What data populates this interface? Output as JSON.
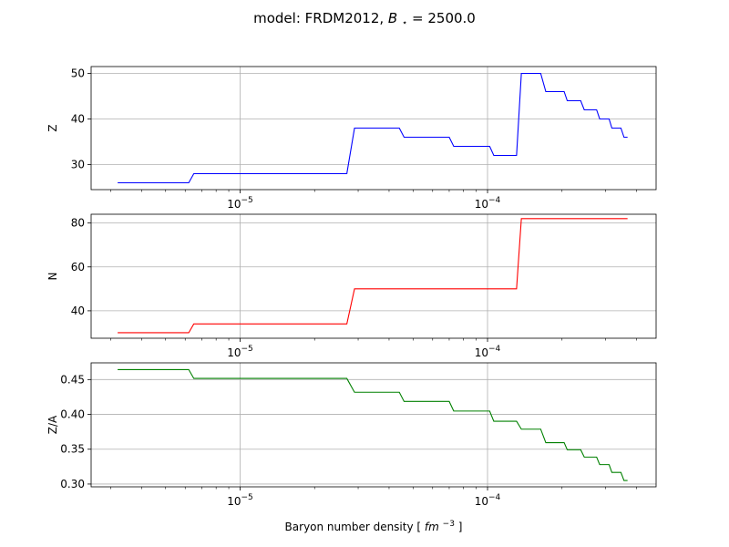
{
  "figure": {
    "title_prefix": "model: FRDM2012, ",
    "title_math_B": "B",
    "title_math_star": "⋆",
    "title_value": " = 2500.0"
  },
  "x_axis": {
    "label_prefix": "Baryon number density [",
    "label_unit_base": "fm",
    "label_unit_exp": "−3",
    "label_suffix": "]",
    "scale": "log",
    "xlim": [
      2.5e-06,
      0.00048
    ],
    "major_ticks": [
      {
        "value": 1e-05,
        "base": "10",
        "exp": "−5"
      },
      {
        "value": 0.0001,
        "base": "10",
        "exp": "−4"
      }
    ]
  },
  "colors": {
    "Z": "#0000ff",
    "N": "#ff0000",
    "ZA": "#008000",
    "grid": "#b0b0b0"
  },
  "chart_data": [
    {
      "type": "line",
      "ylabel": "Z",
      "xscale": "log",
      "ylim": [
        24.5,
        51.5
      ],
      "yticks": [
        30,
        40,
        50
      ],
      "grid": true,
      "x": [
        3.2e-06,
        6.2e-06,
        6.5e-06,
        2.7e-05,
        2.9e-05,
        4.4e-05,
        4.6e-05,
        7e-05,
        7.3e-05,
        0.000102,
        0.000106,
        0.000131,
        0.000137,
        0.000164,
        0.000172,
        0.000204,
        0.00021,
        0.000238,
        0.000246,
        0.000276,
        0.000284,
        0.00031,
        0.000318,
        0.000346,
        0.000356,
        0.000368
      ],
      "y": [
        26,
        26,
        28,
        28,
        38,
        38,
        36,
        36,
        34,
        34,
        32,
        32,
        50,
        50,
        46,
        46,
        44,
        44,
        42,
        42,
        40,
        40,
        38,
        38,
        36,
        36
      ]
    },
    {
      "type": "line",
      "ylabel": "N",
      "xscale": "log",
      "ylim": [
        27.5,
        84
      ],
      "yticks": [
        40,
        60,
        80
      ],
      "grid": true,
      "x": [
        3.2e-06,
        6.2e-06,
        6.5e-06,
        2.7e-05,
        2.9e-05,
        0.000131,
        0.000137,
        0.000368
      ],
      "y": [
        30,
        30,
        34,
        34,
        50,
        50,
        82,
        82
      ]
    },
    {
      "type": "line",
      "ylabel": "Z/A",
      "xscale": "log",
      "ylim": [
        0.296,
        0.474
      ],
      "yticks": [
        0.3,
        0.35,
        0.4,
        0.45
      ],
      "ytick_labels": [
        "0.30",
        "0.35",
        "0.40",
        "0.45"
      ],
      "grid": true,
      "x": [
        3.2e-06,
        6.2e-06,
        6.5e-06,
        2.7e-05,
        2.9e-05,
        4.4e-05,
        4.6e-05,
        7e-05,
        7.3e-05,
        0.000102,
        0.000106,
        0.000131,
        0.000137,
        0.000164,
        0.000172,
        0.000204,
        0.00021,
        0.000238,
        0.000246,
        0.000276,
        0.000284,
        0.00031,
        0.000318,
        0.000346,
        0.000356,
        0.000368
      ],
      "y": [
        0.4643,
        0.4643,
        0.4516,
        0.4516,
        0.4318,
        0.4318,
        0.4186,
        0.4186,
        0.4048,
        0.4048,
        0.3902,
        0.3902,
        0.3788,
        0.3788,
        0.3594,
        0.3594,
        0.3492,
        0.3492,
        0.3387,
        0.3387,
        0.3279,
        0.3279,
        0.3167,
        0.3167,
        0.3051,
        0.3051
      ]
    }
  ]
}
